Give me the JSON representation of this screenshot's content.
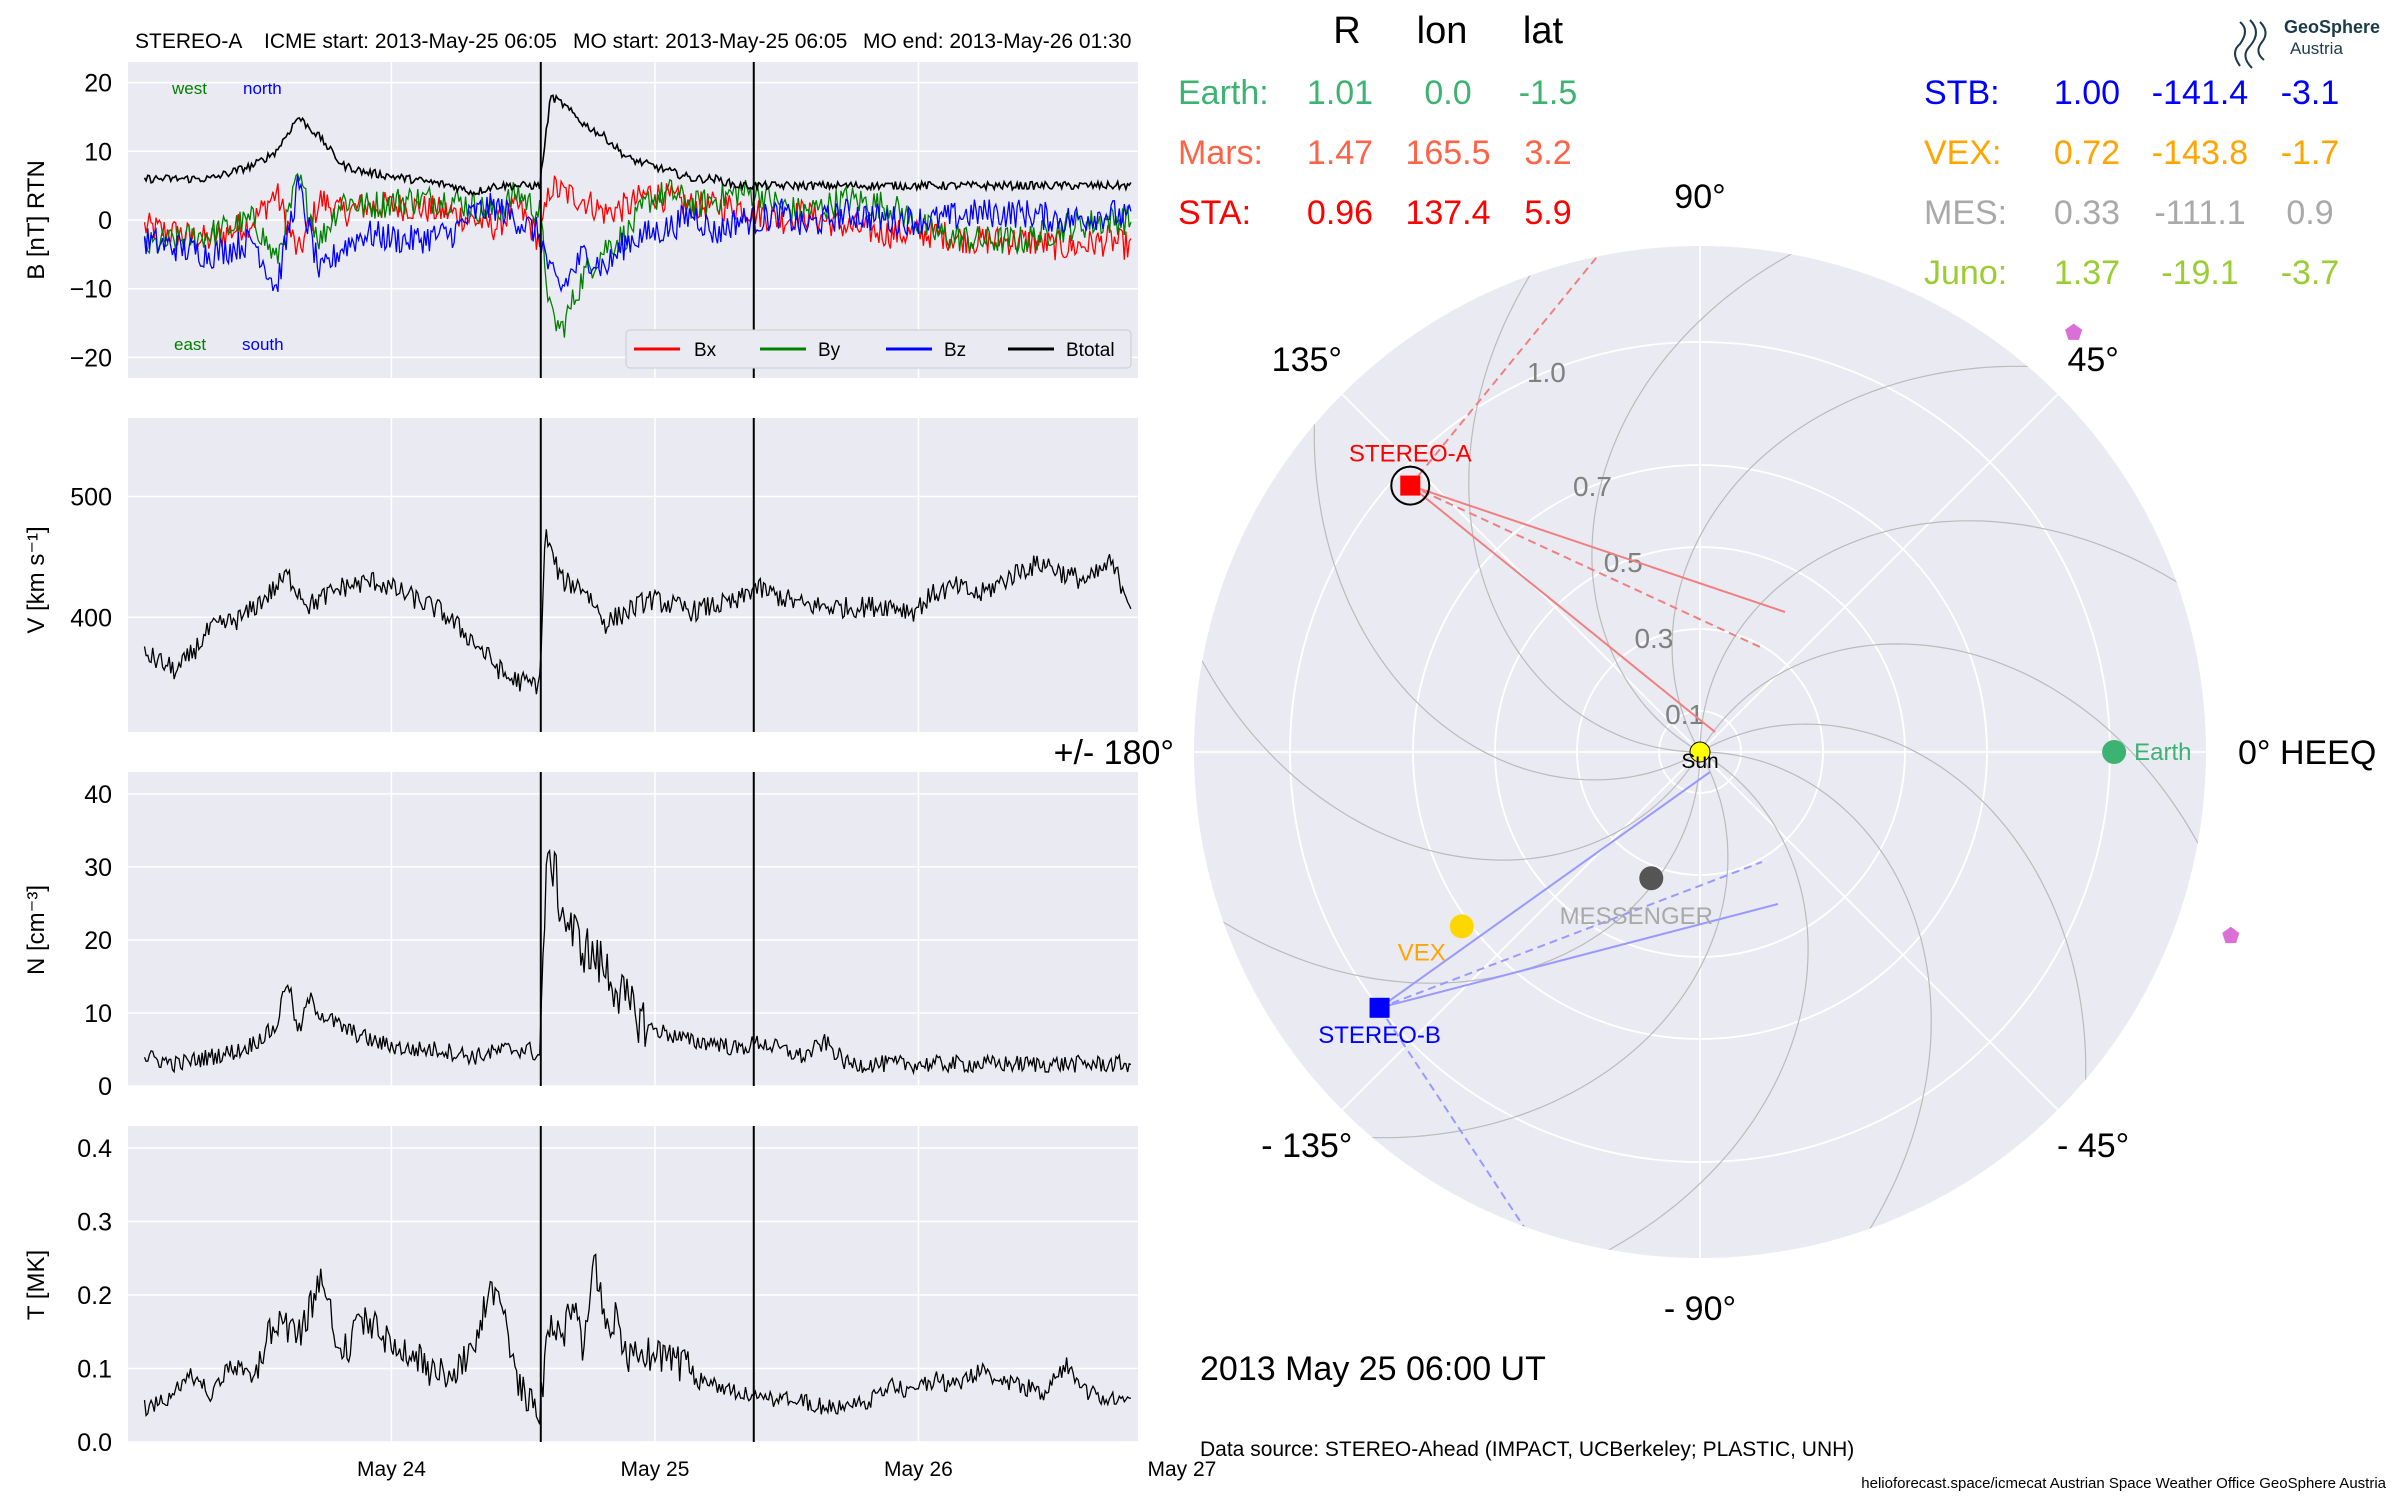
{
  "header": {
    "spacecraft": "STEREO-A",
    "icme_start": "ICME start: 2013-May-25 06:05",
    "mo_start": "MO start: 2013-May-25 06:05",
    "mo_end": "MO end: 2013-May-26 01:30"
  },
  "colors": {
    "panel_bg": "#eaeaf2",
    "grid": "#ffffff",
    "bx": "#ff0000",
    "by": "#008000",
    "bz": "#0000ff",
    "btotal": "#000000",
    "earth": "#3cb371",
    "mars": "#ff6347",
    "sta": "#ff0000",
    "stb": "#0000ff",
    "vex": "#ffa500",
    "mes": "#a9a9a9",
    "juno": "#9acd32",
    "messenger_dot": "#555555",
    "sun": "#ffff00",
    "juno_marker": "#da70d6"
  },
  "chart_data": [
    {
      "type": "line",
      "ylabel": "B [nT] RTN",
      "ylim": [
        -23,
        23
      ],
      "yticks": [
        -20,
        -10,
        0,
        10,
        20
      ],
      "xlim_hours": [
        -1.5,
        90.5
      ],
      "xticks": [
        "May 24",
        "May 25",
        "May 26",
        "May 27"
      ],
      "annotations": {
        "west": "west",
        "north": "north",
        "east": "east",
        "south": "south"
      },
      "legend": "lower-right",
      "series": [
        {
          "name": "Bx",
          "x": [
            0,
            6,
            10,
            12,
            14,
            16,
            18,
            20,
            24,
            28,
            30,
            32,
            34,
            36,
            37,
            38,
            40,
            42,
            44,
            46,
            48,
            50,
            52,
            54,
            56,
            58,
            60,
            64,
            68,
            72,
            76,
            80,
            84,
            88,
            90
          ],
          "y": [
            -1,
            -3,
            0,
            4,
            -5,
            3,
            1,
            2,
            2,
            1,
            0,
            -1,
            2,
            -3,
            5,
            4,
            3,
            1,
            2,
            4,
            3,
            2,
            2,
            2,
            1,
            0,
            1,
            -1,
            -2,
            -2,
            -3,
            -3,
            -4,
            -3,
            -4
          ]
        },
        {
          "name": "By",
          "x": [
            0,
            6,
            10,
            12,
            14,
            16,
            18,
            20,
            24,
            28,
            30,
            32,
            34,
            36,
            37,
            38,
            40,
            42,
            44,
            46,
            48,
            50,
            52,
            54,
            56,
            58,
            60,
            64,
            68,
            72,
            76,
            80,
            84,
            88,
            90
          ],
          "y": [
            -4,
            -2,
            0,
            -6,
            6,
            -3,
            3,
            2,
            3,
            3,
            2,
            1,
            4,
            1,
            -14,
            -16,
            -8,
            -4,
            -2,
            3,
            4,
            2,
            3,
            4,
            4,
            2,
            1,
            3,
            2,
            -2,
            -3,
            -3,
            -1,
            0,
            0
          ]
        },
        {
          "name": "Bz",
          "x": [
            0,
            6,
            10,
            12,
            14,
            16,
            18,
            20,
            24,
            28,
            30,
            32,
            34,
            36,
            37,
            38,
            40,
            42,
            44,
            46,
            48,
            50,
            52,
            54,
            56,
            58,
            60,
            64,
            68,
            72,
            76,
            80,
            84,
            88,
            90
          ],
          "y": [
            -3,
            -5,
            -3,
            -10,
            5,
            -8,
            -4,
            -2,
            -3,
            -2,
            1,
            2,
            0,
            -2,
            -8,
            -10,
            -5,
            -7,
            -3,
            -2,
            -1,
            1,
            -2,
            0,
            0,
            1,
            -1,
            1,
            0,
            0,
            1,
            1,
            0,
            1,
            0
          ]
        },
        {
          "name": "Btotal",
          "x": [
            0,
            6,
            10,
            12,
            14,
            16,
            18,
            20,
            24,
            28,
            30,
            32,
            34,
            36,
            37,
            38,
            40,
            42,
            44,
            46,
            48,
            50,
            52,
            54,
            56,
            58,
            60,
            64,
            68,
            72,
            76,
            80,
            84,
            88,
            90
          ],
          "y": [
            6,
            6,
            8,
            10,
            15,
            12,
            8,
            7,
            6,
            5,
            4,
            5,
            5,
            5,
            18,
            17,
            14,
            12,
            9,
            8,
            7,
            6,
            6,
            5,
            5,
            5,
            5,
            5,
            5,
            5,
            5,
            5,
            5,
            5,
            5
          ]
        }
      ],
      "event_lines_hours": [
        36.1,
        55.5
      ]
    },
    {
      "type": "line",
      "ylabel": "V [km s⁻¹]",
      "ylim": [
        305,
        565
      ],
      "yticks": [
        400,
        500
      ],
      "series": [
        {
          "name": "",
          "x": [
            0,
            3,
            6,
            9,
            12,
            13,
            15,
            18,
            21,
            24,
            27,
            30,
            33,
            35,
            36,
            36.5,
            37,
            38,
            40,
            42,
            44,
            46,
            48,
            50,
            52,
            54,
            55.5,
            57,
            60,
            64,
            68,
            70,
            72,
            74,
            76,
            80,
            82,
            84,
            86,
            88,
            90
          ],
          "y": [
            370,
            355,
            390,
            400,
            425,
            435,
            410,
            425,
            430,
            418,
            405,
            380,
            350,
            345,
            345,
            470,
            455,
            430,
            425,
            395,
            405,
            415,
            410,
            405,
            410,
            412,
            425,
            420,
            410,
            408,
            410,
            405,
            420,
            425,
            418,
            440,
            445,
            435,
            430,
            445,
            410
          ]
        }
      ]
    },
    {
      "type": "line",
      "ylabel": "N [cm⁻³]",
      "ylim": [
        0,
        43
      ],
      "yticks": [
        0,
        10,
        20,
        30,
        40
      ],
      "series": [
        {
          "name": "",
          "x": [
            0,
            3,
            6,
            9,
            12,
            13,
            14,
            15,
            16,
            18,
            21,
            24,
            27,
            30,
            33,
            35,
            36,
            36.5,
            37,
            38,
            39,
            40,
            42,
            44,
            46,
            48,
            50,
            52,
            54,
            56,
            58,
            60,
            62,
            64,
            68,
            72,
            76,
            80,
            84,
            88,
            90
          ],
          "y": [
            4,
            3,
            4,
            5,
            8,
            15,
            7,
            12,
            10,
            8,
            6,
            5,
            5,
            4,
            5,
            5,
            4,
            26,
            32,
            24,
            21,
            19,
            16,
            11,
            8,
            7,
            6,
            6,
            5,
            6,
            5,
            4,
            6,
            3,
            3,
            3,
            3,
            3,
            3,
            3,
            3
          ]
        }
      ]
    },
    {
      "type": "line",
      "ylabel": "T [MK]",
      "ylim": [
        0,
        0.43
      ],
      "yticks": [
        0.0,
        0.1,
        0.2,
        0.3,
        0.4
      ],
      "series": [
        {
          "name": "",
          "x": [
            0,
            2,
            4,
            6,
            8,
            10,
            12,
            14,
            16,
            18,
            20,
            22,
            24,
            26,
            28,
            30,
            32,
            34,
            35,
            36,
            37,
            38,
            39,
            40,
            41,
            42,
            43,
            44,
            46,
            48,
            50,
            52,
            54,
            56,
            58,
            60,
            62,
            64,
            66,
            68,
            70,
            72,
            74,
            76,
            78,
            80,
            82,
            84,
            86,
            88,
            90
          ],
          "y": [
            0.04,
            0.05,
            0.09,
            0.06,
            0.1,
            0.08,
            0.15,
            0.12,
            0.2,
            0.1,
            0.15,
            0.12,
            0.1,
            0.08,
            0.07,
            0.12,
            0.2,
            0.06,
            0.04,
            0.03,
            0.15,
            0.12,
            0.18,
            0.1,
            0.24,
            0.12,
            0.15,
            0.09,
            0.1,
            0.09,
            0.08,
            0.07,
            0.06,
            0.06,
            0.05,
            0.05,
            0.04,
            0.04,
            0.05,
            0.07,
            0.06,
            0.08,
            0.07,
            0.09,
            0.08,
            0.07,
            0.06,
            0.1,
            0.06,
            0.05,
            0.05
          ]
        }
      ]
    },
    {
      "type": "scatter",
      "projection": "polar",
      "columns": [
        "R",
        "lon",
        "lat"
      ],
      "radial_ticks": [
        "0.1",
        "0.3",
        "0.5",
        "0.7",
        "1.0"
      ],
      "angle_labels": [
        {
          "deg": 0,
          "text": "0° HEEQ"
        },
        {
          "deg": 45,
          "text": "45°"
        },
        {
          "deg": 90,
          "text": "90°"
        },
        {
          "deg": 135,
          "text": "135°"
        },
        {
          "deg": 180,
          "text": "+/- 180°"
        },
        {
          "deg": -135,
          "text": "- 135°"
        },
        {
          "deg": -90,
          "text": "- 90°"
        },
        {
          "deg": -45,
          "text": "- 45°"
        }
      ],
      "table_left": [
        {
          "name": "Earth:",
          "R": "1.01",
          "lon": "0.0",
          "lat": "-1.5",
          "color": "#3cb371"
        },
        {
          "name": "Mars:",
          "R": "1.47",
          "lon": "165.5",
          "lat": "3.2",
          "color": "#ff6347"
        },
        {
          "name": "STA:",
          "R": "0.96",
          "lon": "137.4",
          "lat": "5.9",
          "color": "#ff0000"
        }
      ],
      "table_right": [
        {
          "name": "STB:",
          "R": "1.00",
          "lon": "-141.4",
          "lat": "-3.1",
          "color": "#0000ff"
        },
        {
          "name": "VEX:",
          "R": "0.72",
          "lon": "-143.8",
          "lat": "-1.7",
          "color": "#ffa500"
        },
        {
          "name": "MES:",
          "R": "0.33",
          "lon": "-111.1",
          "lat": "0.9",
          "color": "#a9a9a9"
        },
        {
          "name": "Juno:",
          "R": "1.37",
          "lon": "-19.1",
          "lat": "-3.7",
          "color": "#9acd32"
        }
      ],
      "bodies": [
        {
          "label": "Earth",
          "r": 1.01,
          "lon": 0.0,
          "color": "#3cb371",
          "shape": "circle"
        },
        {
          "label": "STEREO-A",
          "r": 0.96,
          "lon": 137.4,
          "color": "#ff0000",
          "shape": "square"
        },
        {
          "label": "STEREO-B",
          "r": 1.0,
          "lon": -141.4,
          "color": "#0000ff",
          "shape": "square"
        },
        {
          "label": "VEX",
          "r": 0.72,
          "lon": -143.8,
          "color": "#ffd700",
          "shape": "circle"
        },
        {
          "label": "MESSENGER",
          "r": 0.33,
          "lon": -111.1,
          "color": "#555555",
          "shape": "circle"
        },
        {
          "label": "Sun",
          "r": 0.0,
          "lon": 0.0,
          "color": "#ffff00",
          "shape": "circle"
        }
      ],
      "juno_markers": [
        {
          "r": 1.37,
          "lon": -19.1
        },
        {
          "r": 1.37,
          "lon": 48.3
        }
      ]
    }
  ],
  "timestamp": "2013 May 25  06:00 UT",
  "data_source": "Data source: STEREO-Ahead (IMPACT, UCBerkeley; PLASTIC, UNH)",
  "footer": "helioforecast.space/icmecat   Austrian Space Weather Office   GeoSphere Austria",
  "logo": {
    "line1": "GeoSphere",
    "line2": "Austria"
  }
}
